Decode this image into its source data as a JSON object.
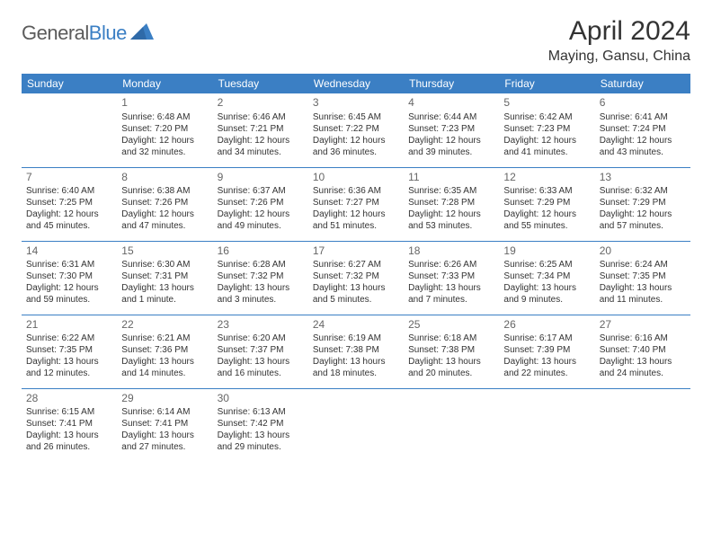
{
  "logo": {
    "text1": "General",
    "text2": "Blue"
  },
  "title": "April 2024",
  "location": "Maying, Gansu, China",
  "headers": [
    "Sunday",
    "Monday",
    "Tuesday",
    "Wednesday",
    "Thursday",
    "Friday",
    "Saturday"
  ],
  "colors": {
    "header_bg": "#3b7fc4",
    "header_text": "#ffffff",
    "text": "#333333",
    "daynum": "#666666",
    "rule": "#3b7fc4",
    "background": "#ffffff"
  },
  "weeks": [
    [
      null,
      {
        "n": "1",
        "sr": "Sunrise: 6:48 AM",
        "ss": "Sunset: 7:20 PM",
        "d1": "Daylight: 12 hours",
        "d2": "and 32 minutes."
      },
      {
        "n": "2",
        "sr": "Sunrise: 6:46 AM",
        "ss": "Sunset: 7:21 PM",
        "d1": "Daylight: 12 hours",
        "d2": "and 34 minutes."
      },
      {
        "n": "3",
        "sr": "Sunrise: 6:45 AM",
        "ss": "Sunset: 7:22 PM",
        "d1": "Daylight: 12 hours",
        "d2": "and 36 minutes."
      },
      {
        "n": "4",
        "sr": "Sunrise: 6:44 AM",
        "ss": "Sunset: 7:23 PM",
        "d1": "Daylight: 12 hours",
        "d2": "and 39 minutes."
      },
      {
        "n": "5",
        "sr": "Sunrise: 6:42 AM",
        "ss": "Sunset: 7:23 PM",
        "d1": "Daylight: 12 hours",
        "d2": "and 41 minutes."
      },
      {
        "n": "6",
        "sr": "Sunrise: 6:41 AM",
        "ss": "Sunset: 7:24 PM",
        "d1": "Daylight: 12 hours",
        "d2": "and 43 minutes."
      }
    ],
    [
      {
        "n": "7",
        "sr": "Sunrise: 6:40 AM",
        "ss": "Sunset: 7:25 PM",
        "d1": "Daylight: 12 hours",
        "d2": "and 45 minutes."
      },
      {
        "n": "8",
        "sr": "Sunrise: 6:38 AM",
        "ss": "Sunset: 7:26 PM",
        "d1": "Daylight: 12 hours",
        "d2": "and 47 minutes."
      },
      {
        "n": "9",
        "sr": "Sunrise: 6:37 AM",
        "ss": "Sunset: 7:26 PM",
        "d1": "Daylight: 12 hours",
        "d2": "and 49 minutes."
      },
      {
        "n": "10",
        "sr": "Sunrise: 6:36 AM",
        "ss": "Sunset: 7:27 PM",
        "d1": "Daylight: 12 hours",
        "d2": "and 51 minutes."
      },
      {
        "n": "11",
        "sr": "Sunrise: 6:35 AM",
        "ss": "Sunset: 7:28 PM",
        "d1": "Daylight: 12 hours",
        "d2": "and 53 minutes."
      },
      {
        "n": "12",
        "sr": "Sunrise: 6:33 AM",
        "ss": "Sunset: 7:29 PM",
        "d1": "Daylight: 12 hours",
        "d2": "and 55 minutes."
      },
      {
        "n": "13",
        "sr": "Sunrise: 6:32 AM",
        "ss": "Sunset: 7:29 PM",
        "d1": "Daylight: 12 hours",
        "d2": "and 57 minutes."
      }
    ],
    [
      {
        "n": "14",
        "sr": "Sunrise: 6:31 AM",
        "ss": "Sunset: 7:30 PM",
        "d1": "Daylight: 12 hours",
        "d2": "and 59 minutes."
      },
      {
        "n": "15",
        "sr": "Sunrise: 6:30 AM",
        "ss": "Sunset: 7:31 PM",
        "d1": "Daylight: 13 hours",
        "d2": "and 1 minute."
      },
      {
        "n": "16",
        "sr": "Sunrise: 6:28 AM",
        "ss": "Sunset: 7:32 PM",
        "d1": "Daylight: 13 hours",
        "d2": "and 3 minutes."
      },
      {
        "n": "17",
        "sr": "Sunrise: 6:27 AM",
        "ss": "Sunset: 7:32 PM",
        "d1": "Daylight: 13 hours",
        "d2": "and 5 minutes."
      },
      {
        "n": "18",
        "sr": "Sunrise: 6:26 AM",
        "ss": "Sunset: 7:33 PM",
        "d1": "Daylight: 13 hours",
        "d2": "and 7 minutes."
      },
      {
        "n": "19",
        "sr": "Sunrise: 6:25 AM",
        "ss": "Sunset: 7:34 PM",
        "d1": "Daylight: 13 hours",
        "d2": "and 9 minutes."
      },
      {
        "n": "20",
        "sr": "Sunrise: 6:24 AM",
        "ss": "Sunset: 7:35 PM",
        "d1": "Daylight: 13 hours",
        "d2": "and 11 minutes."
      }
    ],
    [
      {
        "n": "21",
        "sr": "Sunrise: 6:22 AM",
        "ss": "Sunset: 7:35 PM",
        "d1": "Daylight: 13 hours",
        "d2": "and 12 minutes."
      },
      {
        "n": "22",
        "sr": "Sunrise: 6:21 AM",
        "ss": "Sunset: 7:36 PM",
        "d1": "Daylight: 13 hours",
        "d2": "and 14 minutes."
      },
      {
        "n": "23",
        "sr": "Sunrise: 6:20 AM",
        "ss": "Sunset: 7:37 PM",
        "d1": "Daylight: 13 hours",
        "d2": "and 16 minutes."
      },
      {
        "n": "24",
        "sr": "Sunrise: 6:19 AM",
        "ss": "Sunset: 7:38 PM",
        "d1": "Daylight: 13 hours",
        "d2": "and 18 minutes."
      },
      {
        "n": "25",
        "sr": "Sunrise: 6:18 AM",
        "ss": "Sunset: 7:38 PM",
        "d1": "Daylight: 13 hours",
        "d2": "and 20 minutes."
      },
      {
        "n": "26",
        "sr": "Sunrise: 6:17 AM",
        "ss": "Sunset: 7:39 PM",
        "d1": "Daylight: 13 hours",
        "d2": "and 22 minutes."
      },
      {
        "n": "27",
        "sr": "Sunrise: 6:16 AM",
        "ss": "Sunset: 7:40 PM",
        "d1": "Daylight: 13 hours",
        "d2": "and 24 minutes."
      }
    ],
    [
      {
        "n": "28",
        "sr": "Sunrise: 6:15 AM",
        "ss": "Sunset: 7:41 PM",
        "d1": "Daylight: 13 hours",
        "d2": "and 26 minutes."
      },
      {
        "n": "29",
        "sr": "Sunrise: 6:14 AM",
        "ss": "Sunset: 7:41 PM",
        "d1": "Daylight: 13 hours",
        "d2": "and 27 minutes."
      },
      {
        "n": "30",
        "sr": "Sunrise: 6:13 AM",
        "ss": "Sunset: 7:42 PM",
        "d1": "Daylight: 13 hours",
        "d2": "and 29 minutes."
      },
      null,
      null,
      null,
      null
    ]
  ]
}
